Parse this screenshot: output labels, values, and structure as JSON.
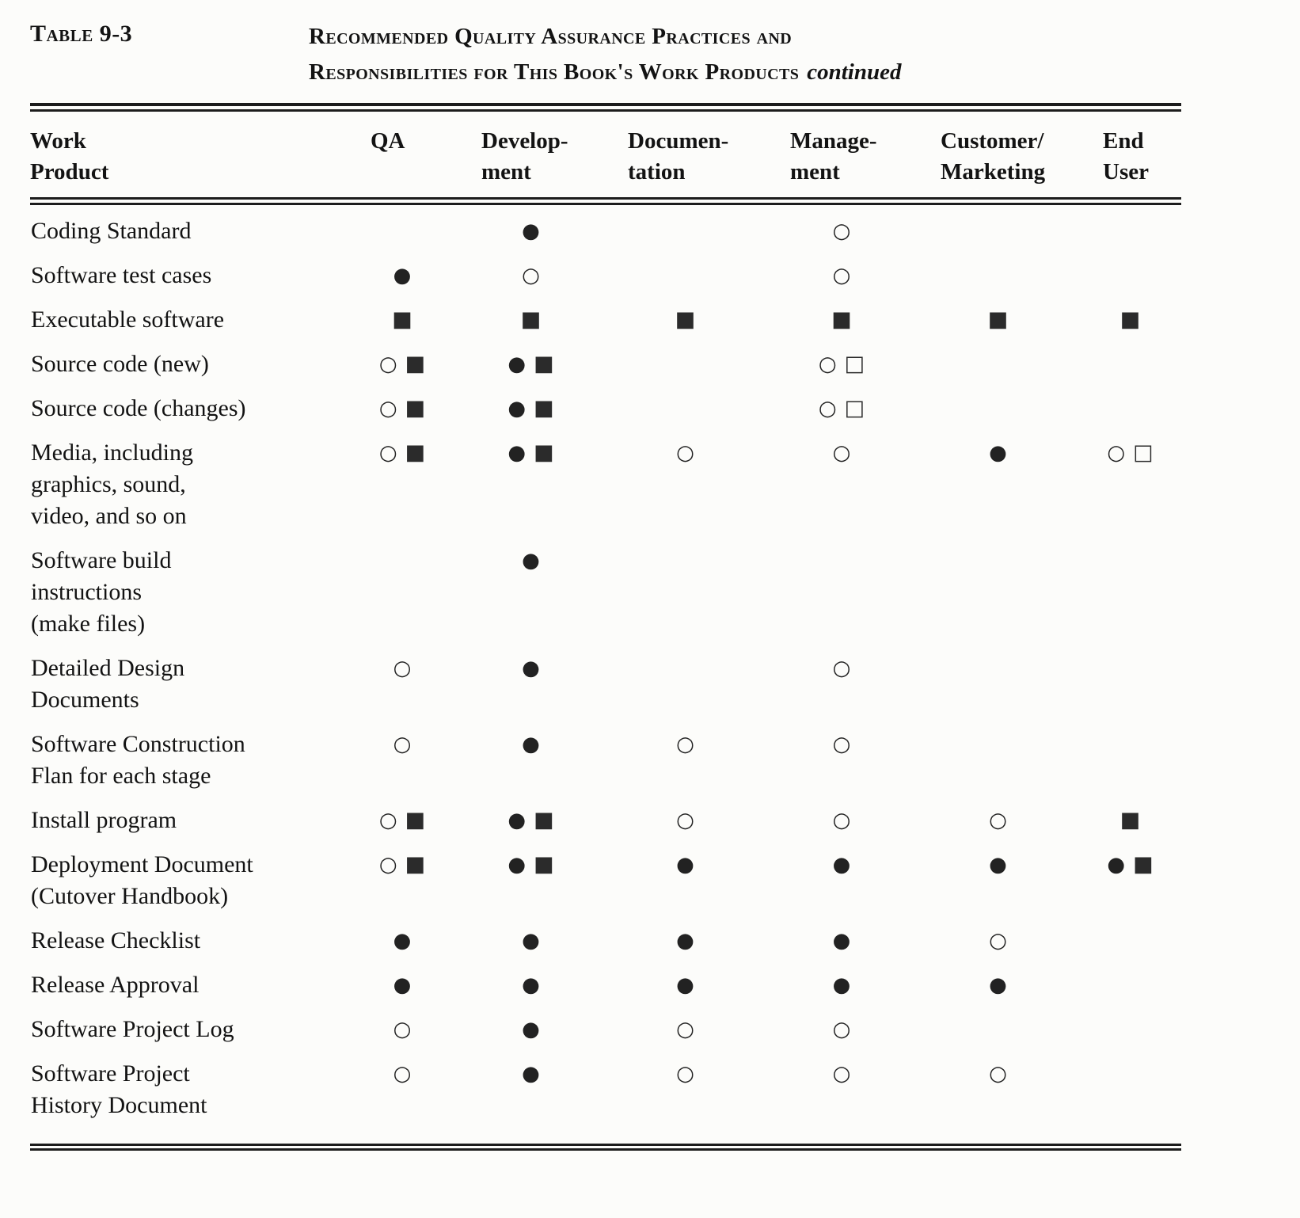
{
  "page": {
    "table_label": "Table 9-3",
    "title": {
      "line1": "Recommended Quality Assurance Practices and",
      "line2": "Responsibilities for This Book's Work Products",
      "continued": "continued"
    }
  },
  "table": {
    "columns": [
      {
        "label": "Work\nProduct"
      },
      {
        "label": "QA"
      },
      {
        "label": "Develop-\nment"
      },
      {
        "label": "Documen-\ntation"
      },
      {
        "label": "Manage-\nment"
      },
      {
        "label": "Customer/\nMarketing"
      },
      {
        "label": "End\nUser"
      }
    ],
    "legend_glyphs": {
      "filled-circle": "●",
      "open-circle": "○",
      "filled-square": "■",
      "open-square": "□"
    },
    "rows": [
      {
        "product": "Coding Standard",
        "cells": [
          [],
          [
            "filled-circle"
          ],
          [],
          [
            "open-circle"
          ],
          [],
          []
        ]
      },
      {
        "product": "Software test cases",
        "cells": [
          [
            "filled-circle"
          ],
          [
            "open-circle"
          ],
          [],
          [
            "open-circle"
          ],
          [],
          []
        ]
      },
      {
        "product": "Executable software",
        "cells": [
          [
            "filled-square"
          ],
          [
            "filled-square"
          ],
          [
            "filled-square"
          ],
          [
            "filled-square"
          ],
          [
            "filled-square"
          ],
          [
            "filled-square"
          ]
        ]
      },
      {
        "product": "Source code (new)",
        "cells": [
          [
            "open-circle",
            "filled-square"
          ],
          [
            "filled-circle",
            "filled-square"
          ],
          [],
          [
            "open-circle",
            "open-square"
          ],
          [],
          []
        ]
      },
      {
        "product": "Source code (changes)",
        "cells": [
          [
            "open-circle",
            "filled-square"
          ],
          [
            "filled-circle",
            "filled-square"
          ],
          [],
          [
            "open-circle",
            "open-square"
          ],
          [],
          []
        ]
      },
      {
        "product": "Media, including\ngraphics, sound,\nvideo, and so on",
        "cells": [
          [
            "open-circle",
            "filled-square"
          ],
          [
            "filled-circle",
            "filled-square"
          ],
          [
            "open-circle"
          ],
          [
            "open-circle"
          ],
          [
            "filled-circle"
          ],
          [
            "open-circle",
            "open-square"
          ]
        ]
      },
      {
        "product": "Software build\ninstructions\n(make files)",
        "cells": [
          [],
          [
            "filled-circle"
          ],
          [],
          [],
          [],
          []
        ]
      },
      {
        "product": "Detailed Design\nDocuments",
        "cells": [
          [
            "open-circle"
          ],
          [
            "filled-circle"
          ],
          [],
          [
            "open-circle"
          ],
          [],
          []
        ]
      },
      {
        "product": "Software Construction\nFlan for each stage",
        "cells": [
          [
            "open-circle"
          ],
          [
            "filled-circle"
          ],
          [
            "open-circle"
          ],
          [
            "open-circle"
          ],
          [],
          []
        ]
      },
      {
        "product": "Install program",
        "cells": [
          [
            "open-circle",
            "filled-square"
          ],
          [
            "filled-circle",
            "filled-square"
          ],
          [
            "open-circle"
          ],
          [
            "open-circle"
          ],
          [
            "open-circle"
          ],
          [
            "filled-square"
          ]
        ]
      },
      {
        "product": "Deployment Document\n(Cutover Handbook)",
        "cells": [
          [
            "open-circle",
            "filled-square"
          ],
          [
            "filled-circle",
            "filled-square"
          ],
          [
            "filled-circle"
          ],
          [
            "filled-circle"
          ],
          [
            "filled-circle"
          ],
          [
            "filled-circle",
            "filled-square"
          ]
        ]
      },
      {
        "product": "Release Checklist",
        "cells": [
          [
            "filled-circle"
          ],
          [
            "filled-circle"
          ],
          [
            "filled-circle"
          ],
          [
            "filled-circle"
          ],
          [
            "open-circle"
          ],
          []
        ]
      },
      {
        "product": "Release Approval",
        "cells": [
          [
            "filled-circle"
          ],
          [
            "filled-circle"
          ],
          [
            "filled-circle"
          ],
          [
            "filled-circle"
          ],
          [
            "filled-circle"
          ],
          []
        ]
      },
      {
        "product": "Software Project Log",
        "cells": [
          [
            "open-circle"
          ],
          [
            "filled-circle"
          ],
          [
            "open-circle"
          ],
          [
            "open-circle"
          ],
          [],
          []
        ]
      },
      {
        "product": "Software Project\nHistory Document",
        "cells": [
          [
            "open-circle"
          ],
          [
            "filled-circle"
          ],
          [
            "open-circle"
          ],
          [
            "open-circle"
          ],
          [
            "open-circle"
          ],
          []
        ]
      }
    ]
  }
}
